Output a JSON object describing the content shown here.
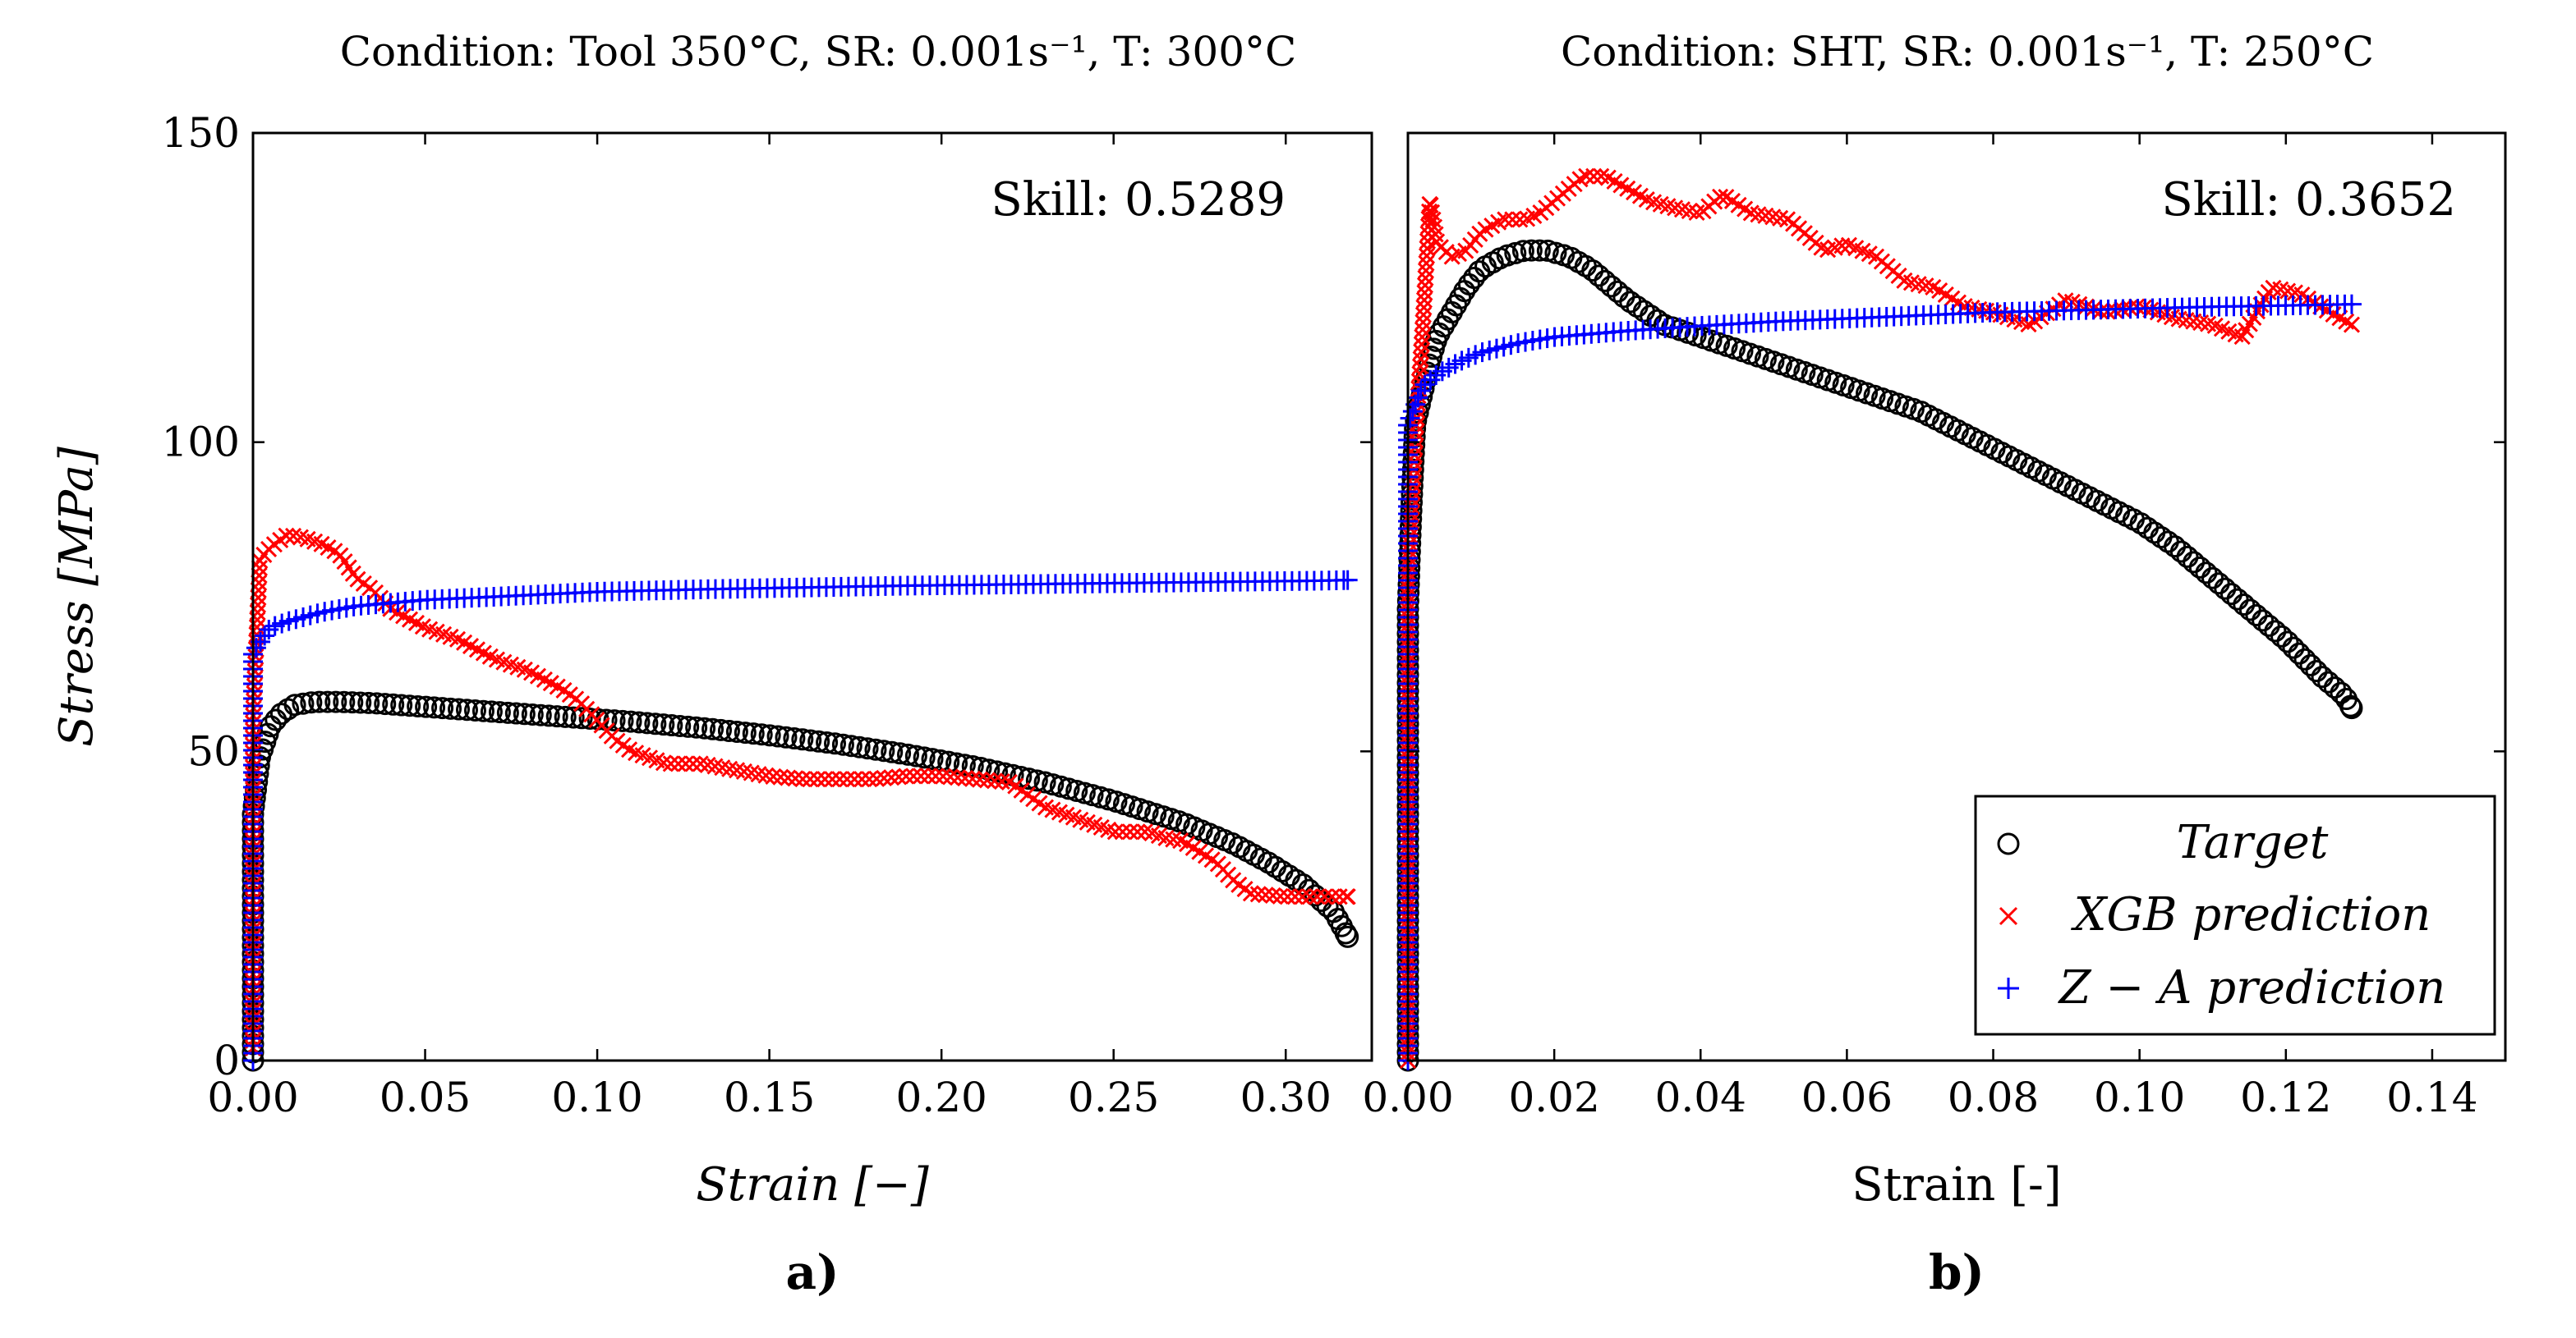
{
  "chart_data": [
    {
      "type": "scatter",
      "title": "Condition: Tool 350°C, SR: 0.001s⁻¹, T: 300°C",
      "xlabel": "Strain [−]",
      "ylabel": "Stress [MPa]",
      "panel_label": "a)",
      "annotation": "Skill: 0.5289",
      "xlim": [
        0,
        0.325
      ],
      "ylim": [
        0,
        150
      ],
      "xticks": [
        "0.00",
        "0.05",
        "0.10",
        "0.15",
        "0.20",
        "0.25",
        "0.30"
      ],
      "yticks": [
        "0",
        "50",
        "100",
        "150"
      ],
      "grid": false,
      "series": [
        {
          "name": "Target",
          "marker": "circle",
          "color": "#000000",
          "points": [
            [
              0,
              0
            ],
            [
              0,
              15
            ],
            [
              0,
              28
            ],
            [
              0,
              40
            ],
            [
              0.002,
              49
            ],
            [
              0.005,
              54
            ],
            [
              0.008,
              56
            ],
            [
              0.012,
              57.5
            ],
            [
              0.018,
              58
            ],
            [
              0.025,
              58
            ],
            [
              0.035,
              57.8
            ],
            [
              0.05,
              57.2
            ],
            [
              0.07,
              56.4
            ],
            [
              0.09,
              55.6
            ],
            [
              0.11,
              54.8
            ],
            [
              0.13,
              53.8
            ],
            [
              0.15,
              52.6
            ],
            [
              0.17,
              51.2
            ],
            [
              0.19,
              49.5
            ],
            [
              0.21,
              47.5
            ],
            [
              0.23,
              45
            ],
            [
              0.25,
              42
            ],
            [
              0.27,
              38.5
            ],
            [
              0.285,
              35
            ],
            [
              0.295,
              32
            ],
            [
              0.305,
              28.5
            ],
            [
              0.31,
              26
            ],
            [
              0.314,
              24
            ],
            [
              0.316,
              22
            ],
            [
              0.318,
              20
            ]
          ]
        },
        {
          "name": "XGB prediction",
          "marker": "cross",
          "color": "#ff0000",
          "points": [
            [
              0,
              2
            ],
            [
              0,
              21
            ],
            [
              0,
              37
            ],
            [
              0,
              55
            ],
            [
              0.002,
              81
            ],
            [
              0.005,
              83
            ],
            [
              0.01,
              85
            ],
            [
              0.015,
              84.5
            ],
            [
              0.02,
              83.5
            ],
            [
              0.025,
              82
            ],
            [
              0.03,
              78
            ],
            [
              0.035,
              76
            ],
            [
              0.04,
              73
            ],
            [
              0.05,
              70
            ],
            [
              0.06,
              68
            ],
            [
              0.07,
              65
            ],
            [
              0.08,
              63
            ],
            [
              0.09,
              60
            ],
            [
              0.095,
              58
            ],
            [
              0.1,
              55
            ],
            [
              0.105,
              52
            ],
            [
              0.11,
              50
            ],
            [
              0.12,
              48
            ],
            [
              0.13,
              48
            ],
            [
              0.14,
              47
            ],
            [
              0.15,
              46
            ],
            [
              0.16,
              45.5
            ],
            [
              0.17,
              45.5
            ],
            [
              0.18,
              45.5
            ],
            [
              0.19,
              46
            ],
            [
              0.2,
              46
            ],
            [
              0.21,
              45.5
            ],
            [
              0.22,
              45
            ],
            [
              0.225,
              43
            ],
            [
              0.23,
              41
            ],
            [
              0.24,
              39
            ],
            [
              0.25,
              37
            ],
            [
              0.26,
              37
            ],
            [
              0.265,
              36
            ],
            [
              0.27,
              35.5
            ],
            [
              0.28,
              32
            ],
            [
              0.285,
              29
            ],
            [
              0.29,
              27
            ],
            [
              0.3,
              26.5
            ],
            [
              0.31,
              26.5
            ],
            [
              0.318,
              26.5
            ]
          ]
        },
        {
          "name": "Z − A prediction",
          "marker": "plus",
          "color": "#0000ff",
          "points": [
            [
              0,
              0
            ],
            [
              0,
              66
            ],
            [
              0.005,
              70
            ],
            [
              0.01,
              71
            ],
            [
              0.02,
              72.5
            ],
            [
              0.03,
              73.5
            ],
            [
              0.05,
              74.5
            ],
            [
              0.07,
              75
            ],
            [
              0.1,
              75.8
            ],
            [
              0.13,
              76.2
            ],
            [
              0.16,
              76.5
            ],
            [
              0.19,
              76.8
            ],
            [
              0.22,
              77
            ],
            [
              0.25,
              77.2
            ],
            [
              0.28,
              77.4
            ],
            [
              0.31,
              77.6
            ],
            [
              0.318,
              77.7
            ]
          ]
        }
      ]
    },
    {
      "type": "scatter",
      "title": "Condition: SHT, SR: 0.001s⁻¹, T: 250°C",
      "xlabel": "Strain [-]",
      "ylabel": "",
      "panel_label": "b)",
      "annotation": "Skill: 0.3652",
      "xlim": [
        0,
        0.15
      ],
      "ylim": [
        0,
        150
      ],
      "xticks": [
        "0.00",
        "0.02",
        "0.04",
        "0.06",
        "0.08",
        "0.10",
        "0.12",
        "0.14"
      ],
      "yticks": [],
      "grid": false,
      "series": [
        {
          "name": "Target",
          "marker": "circle",
          "color": "#000000",
          "points": [
            [
              0,
              0
            ],
            [
              0,
              7
            ],
            [
              0,
              14
            ],
            [
              0,
              20
            ],
            [
              0,
              27
            ],
            [
              0,
              33
            ],
            [
              0,
              40
            ],
            [
              0,
              46
            ],
            [
              0,
              53
            ],
            [
              0,
              59
            ],
            [
              0,
              66
            ],
            [
              0,
              73
            ],
            [
              0.0002,
              80
            ],
            [
              0.0004,
              87
            ],
            [
              0.0006,
              93
            ],
            [
              0.0008,
              98
            ],
            [
              0.001,
              103
            ],
            [
              0.002,
              108
            ],
            [
              0.003,
              113
            ],
            [
              0.004,
              117
            ],
            [
              0.006,
              121
            ],
            [
              0.008,
              125
            ],
            [
              0.01,
              128
            ],
            [
              0.013,
              130
            ],
            [
              0.016,
              131
            ],
            [
              0.019,
              131
            ],
            [
              0.022,
              130
            ],
            [
              0.025,
              128
            ],
            [
              0.03,
              123
            ],
            [
              0.035,
              119
            ],
            [
              0.04,
              117
            ],
            [
              0.045,
              115
            ],
            [
              0.05,
              113
            ],
            [
              0.055,
              111
            ],
            [
              0.06,
              109
            ],
            [
              0.065,
              107
            ],
            [
              0.07,
              105
            ],
            [
              0.075,
              102
            ],
            [
              0.08,
              99
            ],
            [
              0.085,
              96
            ],
            [
              0.09,
              93
            ],
            [
              0.095,
              90
            ],
            [
              0.1,
              87
            ],
            [
              0.105,
              83
            ],
            [
              0.11,
              78
            ],
            [
              0.115,
              73
            ],
            [
              0.12,
              68
            ],
            [
              0.125,
              62
            ],
            [
              0.128,
              59
            ],
            [
              0.129,
              57
            ]
          ]
        },
        {
          "name": "XGB prediction",
          "marker": "cross",
          "color": "#ff0000",
          "points": [
            [
              0,
              0
            ],
            [
              0,
              10
            ],
            [
              0,
              20
            ],
            [
              0,
              32
            ],
            [
              0,
              45
            ],
            [
              0,
              62
            ],
            [
              0,
              78
            ],
            [
              0.001,
              100
            ],
            [
              0.002,
              118
            ],
            [
              0.003,
              139
            ],
            [
              0.004,
              132
            ],
            [
              0.006,
              130
            ],
            [
              0.008,
              131
            ],
            [
              0.01,
              134
            ],
            [
              0.013,
              136
            ],
            [
              0.016,
              136
            ],
            [
              0.018,
              137
            ],
            [
              0.02,
              139
            ],
            [
              0.022,
              141
            ],
            [
              0.024,
              143
            ],
            [
              0.027,
              143
            ],
            [
              0.03,
              141
            ],
            [
              0.033,
              139
            ],
            [
              0.036,
              138
            ],
            [
              0.04,
              137
            ],
            [
              0.043,
              140
            ],
            [
              0.047,
              137
            ],
            [
              0.052,
              136
            ],
            [
              0.057,
              131
            ],
            [
              0.06,
              132
            ],
            [
              0.064,
              130
            ],
            [
              0.068,
              126
            ],
            [
              0.072,
              125
            ],
            [
              0.076,
              122
            ],
            [
              0.08,
              121
            ],
            [
              0.085,
              119
            ],
            [
              0.09,
              123
            ],
            [
              0.095,
              121
            ],
            [
              0.1,
              122
            ],
            [
              0.105,
              120
            ],
            [
              0.11,
              119
            ],
            [
              0.114,
              117
            ],
            [
              0.118,
              125
            ],
            [
              0.122,
              124
            ],
            [
              0.126,
              121
            ],
            [
              0.129,
              119
            ]
          ]
        },
        {
          "name": "Z − A prediction",
          "marker": "plus",
          "color": "#0000ff",
          "points": [
            [
              0,
              0
            ],
            [
              0,
              103
            ],
            [
              0.001,
              106
            ],
            [
              0.002,
              109
            ],
            [
              0.004,
              111
            ],
            [
              0.007,
              113
            ],
            [
              0.01,
              114.5
            ],
            [
              0.015,
              116
            ],
            [
              0.02,
              117
            ],
            [
              0.03,
              118
            ],
            [
              0.04,
              118.8
            ],
            [
              0.05,
              119.5
            ],
            [
              0.06,
              120
            ],
            [
              0.07,
              120.5
            ],
            [
              0.08,
              121
            ],
            [
              0.09,
              121.3
            ],
            [
              0.1,
              121.6
            ],
            [
              0.11,
              121.9
            ],
            [
              0.12,
              122.1
            ],
            [
              0.129,
              122.3
            ]
          ]
        }
      ],
      "legend": {
        "position": "bottom-right",
        "entries": [
          "Target",
          "XGB prediction",
          "Z − A prediction"
        ]
      }
    }
  ]
}
